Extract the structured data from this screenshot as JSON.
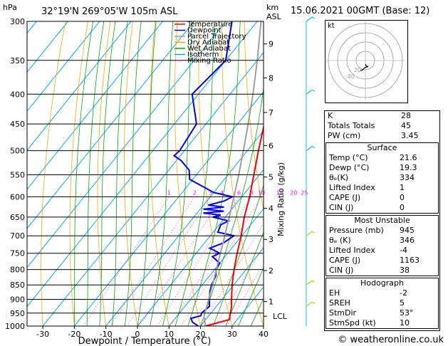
{
  "header": {
    "location": "32°19'N  269°05'W  105m  ASL",
    "date": "15.06.2021  00GMT  (Base: 12)",
    "hpa_unit": "hPa",
    "km_unit": "km",
    "asl_unit": "ASL"
  },
  "legend": [
    {
      "label": "Temperature",
      "color": "#ff0000",
      "style": "solid"
    },
    {
      "label": "Dewpoint",
      "color": "#0000ff",
      "style": "solid"
    },
    {
      "label": "Parcel Trajectory",
      "color": "#a0a0a0",
      "style": "solid"
    },
    {
      "label": "Dry Adiabat",
      "color": "#ffa500",
      "style": "solid"
    },
    {
      "label": "Wet Adiabat",
      "color": "#00b000",
      "style": "solid"
    },
    {
      "label": "Isotherm",
      "color": "#00aaff",
      "style": "solid"
    },
    {
      "label": "Mixing Ratio",
      "color": "#ff00ff",
      "style": "dotted"
    }
  ],
  "chart_data": {
    "type": "line",
    "xlabel": "Dewpoint / Temperature (°C)",
    "ylabel_right": "Mixing Ratio (g/kg)",
    "xlim": [
      -35,
      40
    ],
    "ylim": [
      1000,
      300
    ],
    "x_ticks": [
      -30,
      -20,
      -10,
      0,
      10,
      20,
      30,
      40
    ],
    "pressure_ticks": [
      300,
      350,
      400,
      450,
      500,
      550,
      600,
      650,
      700,
      750,
      800,
      850,
      900,
      950,
      1000
    ],
    "km_ticks": [
      {
        "km": "1",
        "p": 908
      },
      {
        "km": "2",
        "p": 803
      },
      {
        "km": "3",
        "p": 710
      },
      {
        "km": "4",
        "p": 628
      },
      {
        "km": "5",
        "p": 555
      },
      {
        "km": "6",
        "p": 490
      },
      {
        "km": "7",
        "p": 430
      },
      {
        "km": "8",
        "p": 375
      },
      {
        "km": "9",
        "p": 328
      }
    ],
    "lcl_label": "LCL",
    "lcl_p": 962,
    "mixing_ratio_labels": [
      "1",
      "2",
      "3",
      "4",
      "6",
      "8",
      "10",
      "15",
      "20",
      "25"
    ],
    "mixing_ratio_values": [
      1,
      2,
      3,
      4,
      6,
      8,
      10,
      15,
      20,
      25
    ],
    "skew_deg_per_log": 78,
    "series": [
      {
        "name": "Temperature",
        "color": "#ff0000",
        "points": [
          [
            1000,
            21.6
          ],
          [
            975,
            27.5
          ],
          [
            950,
            26.2
          ],
          [
            925,
            24.8
          ],
          [
            900,
            23.0
          ],
          [
            850,
            19.5
          ],
          [
            800,
            16.2
          ],
          [
            750,
            13.0
          ],
          [
            700,
            9.8
          ],
          [
            650,
            6.0
          ],
          [
            600,
            2.5
          ],
          [
            550,
            -1.8
          ],
          [
            500,
            -6.5
          ],
          [
            450,
            -11.5
          ],
          [
            400,
            -17.0
          ],
          [
            350,
            -24.0
          ],
          [
            300,
            -32.0
          ]
        ]
      },
      {
        "name": "Dewpoint",
        "color": "#0000ff",
        "points": [
          [
            1000,
            19.3
          ],
          [
            985,
            16.5
          ],
          [
            970,
            15.0
          ],
          [
            960,
            17.5
          ],
          [
            950,
            17.0
          ],
          [
            925,
            17.8
          ],
          [
            900,
            16.0
          ],
          [
            870,
            14.0
          ],
          [
            850,
            13.0
          ],
          [
            820,
            12.0
          ],
          [
            800,
            10.5
          ],
          [
            780,
            10.0
          ],
          [
            760,
            6.0
          ],
          [
            750,
            7.5
          ],
          [
            735,
            3.0
          ],
          [
            720,
            6.0
          ],
          [
            700,
            7.5
          ],
          [
            690,
            1.5
          ],
          [
            670,
            0.5
          ],
          [
            660,
            2.0
          ],
          [
            650,
            -4.0
          ],
          [
            645,
            -2.0
          ],
          [
            640,
            -8.0
          ],
          [
            635,
            -2.0
          ],
          [
            630,
            -9.0
          ],
          [
            625,
            -3.0
          ],
          [
            620,
            -8.5
          ],
          [
            610,
            -4.5
          ],
          [
            600,
            -3.0
          ],
          [
            590,
            -10.0
          ],
          [
            560,
            -21.0
          ],
          [
            540,
            -23.5
          ],
          [
            520,
            -28.5
          ],
          [
            510,
            -32.0
          ],
          [
            500,
            -31.5
          ],
          [
            450,
            -33.0
          ],
          [
            400,
            -42.0
          ],
          [
            350,
            -40.0
          ],
          [
            300,
            -48.0
          ]
        ]
      },
      {
        "name": "Parcel Trajectory",
        "color": "#a0a0a0",
        "points": [
          [
            1000,
            21.6
          ],
          [
            962,
            18.6
          ],
          [
            900,
            15.8
          ],
          [
            850,
            13.3
          ],
          [
            800,
            10.6
          ],
          [
            750,
            7.7
          ],
          [
            700,
            4.6
          ],
          [
            650,
            1.2
          ],
          [
            600,
            -2.5
          ],
          [
            550,
            -6.6
          ],
          [
            500,
            -11.3
          ],
          [
            450,
            -16.6
          ],
          [
            400,
            -22.7
          ],
          [
            350,
            -30.0
          ],
          [
            300,
            -38.8
          ]
        ]
      }
    ]
  },
  "hodograph": {
    "label": "kt",
    "ring_labels": [
      "20",
      "40"
    ],
    "ring_values": [
      10,
      20,
      30,
      40
    ],
    "winds": [
      [
        0,
        -4
      ],
      [
        1,
        -6
      ],
      [
        2,
        -7
      ],
      [
        3,
        -6
      ],
      [
        -1,
        -8
      ],
      [
        -3,
        -10
      ],
      [
        -5,
        -11
      ]
    ]
  },
  "indices": {
    "top": [
      {
        "label": "K",
        "value": "28"
      },
      {
        "label": "Totals Totals",
        "value": "45"
      },
      {
        "label": "PW (cm)",
        "value": "3.45"
      }
    ],
    "surface": {
      "title": "Surface",
      "rows": [
        {
          "label": "Temp (°C)",
          "value": "21.6"
        },
        {
          "label": "Dewp (°C)",
          "value": "19.3"
        },
        {
          "label": "θₑ(K)",
          "value": "334"
        },
        {
          "label": "Lifted Index",
          "value": "1"
        },
        {
          "label": "CAPE (J)",
          "value": "0"
        },
        {
          "label": "CIN (J)",
          "value": "0"
        }
      ]
    },
    "most_unstable": {
      "title": "Most Unstable",
      "rows": [
        {
          "label": "Pressure (mb)",
          "value": "945"
        },
        {
          "label": "θₑ (K)",
          "value": "346"
        },
        {
          "label": "Lifted Index",
          "value": "-4"
        },
        {
          "label": "CAPE (J)",
          "value": "1163"
        },
        {
          "label": "CIN (J)",
          "value": "38"
        }
      ]
    },
    "hodograph": {
      "title": "Hodograph",
      "rows": [
        {
          "label": "EH",
          "value": "-2"
        },
        {
          "label": "SREH",
          "value": "5"
        },
        {
          "label": "StmDir",
          "value": "53°"
        },
        {
          "label": "StmSpd (kt)",
          "value": "10"
        }
      ]
    }
  },
  "credit": "© weatheronline.co.uk",
  "colors": {
    "isobar": "#000000",
    "temperature": "#ff0000",
    "dewpoint": "#0000ff",
    "parcel": "#a0a0a0",
    "dry_adiabat": "#ffa500",
    "wet_adiabat": "#00b000",
    "isotherm": "#00aaff",
    "mixing_ratio": "#ff00ff",
    "wind_barb": "#00cccc",
    "wind_barb_low": "#cccc00"
  }
}
